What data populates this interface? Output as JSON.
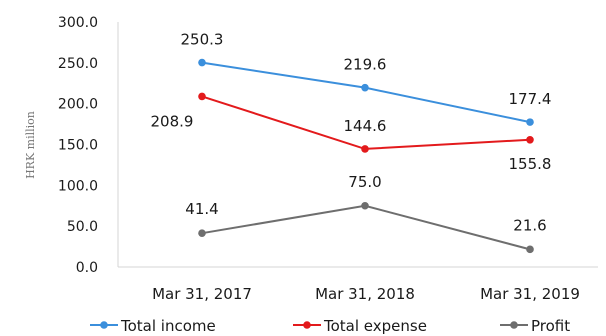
{
  "chart_data": {
    "type": "line",
    "title": "",
    "xlabel": "",
    "ylabel": "HRK million",
    "categories": [
      "Mar 31, 2017",
      "Mar 31, 2018",
      "Mar 31, 2019"
    ],
    "ylim": [
      0,
      300
    ],
    "yticks": [
      "0.0",
      "50.0",
      "100.0",
      "150.0",
      "200.0",
      "250.0",
      "300.0"
    ],
    "grid": false,
    "legend_position": "bottom",
    "series": [
      {
        "name": "Total income",
        "color": "#3b8fdc",
        "values": [
          250.3,
          219.6,
          177.4
        ],
        "labels": [
          "250.3",
          "219.6",
          "177.4"
        ]
      },
      {
        "name": "Total expense",
        "color": "#e31a1c",
        "values": [
          208.9,
          144.6,
          155.8
        ],
        "labels": [
          "208.9",
          "144.6",
          "155.8"
        ]
      },
      {
        "name": "Profit",
        "color": "#6e6e6e",
        "values": [
          41.4,
          75.0,
          21.6
        ],
        "labels": [
          "41.4",
          "75.0",
          "21.6"
        ]
      }
    ]
  }
}
